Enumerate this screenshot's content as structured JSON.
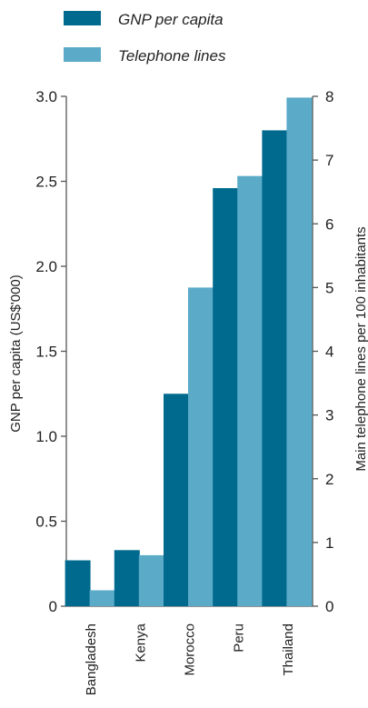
{
  "chart_data": {
    "type": "bar",
    "categories": [
      "Bangladesh",
      "Kenya",
      "Morocco",
      "Peru",
      "Thailand"
    ],
    "series": [
      {
        "name": "GNP per capita",
        "axis": "left",
        "color": "#006a8e",
        "values": [
          0.27,
          0.33,
          1.25,
          2.46,
          2.8
        ]
      },
      {
        "name": "Telephone lines",
        "axis": "right",
        "color": "#5aaac8",
        "values": [
          0.25,
          0.8,
          5.0,
          6.75,
          7.98
        ]
      }
    ],
    "ylabel": "GNP per capita (US$'000)",
    "ylabel_right": "Main telephone lines per 100 inhabitants",
    "ylim": [
      0,
      3.0
    ],
    "ylim_right": [
      0,
      8
    ],
    "yticks": [
      "0",
      "0.5",
      "1.0",
      "1.5",
      "2.0",
      "2.5",
      "3.0"
    ],
    "yticks_right": [
      "0",
      "1",
      "2",
      "3",
      "4",
      "5",
      "6",
      "7",
      "8"
    ],
    "legend_position": "top",
    "grid": false
  }
}
